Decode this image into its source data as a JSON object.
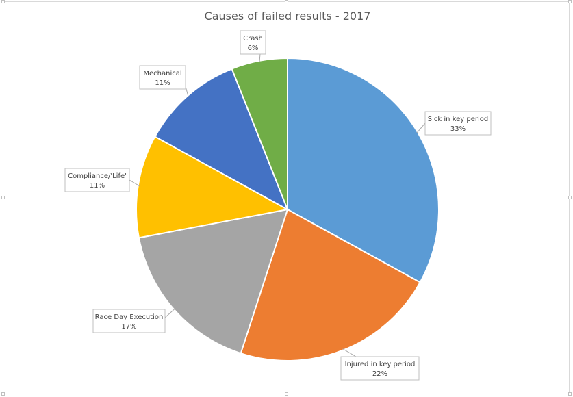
{
  "chart_data": {
    "type": "pie",
    "title": "Causes of failed results - 2017",
    "slices": [
      {
        "label": "Sick in key period",
        "value": 33,
        "pct_label": "33%",
        "color": "#5B9BD5"
      },
      {
        "label": "Injured in key period",
        "value": 22,
        "pct_label": "22%",
        "color": "#ED7D31"
      },
      {
        "label": "Race Day Execution",
        "value": 17,
        "pct_label": "17%",
        "color": "#A5A5A5"
      },
      {
        "label": "Compliance/'Life'",
        "value": 11,
        "pct_label": "11%",
        "color": "#FFC000"
      },
      {
        "label": "Mechanical",
        "value": 11,
        "pct_label": "11%",
        "color": "#4472C4"
      },
      {
        "label": "Crash",
        "value": 6,
        "pct_label": "6%",
        "color": "#70AD47"
      }
    ],
    "legend": "none",
    "data_labels": "callout"
  }
}
